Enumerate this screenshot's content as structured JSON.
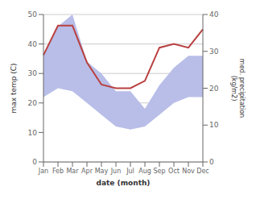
{
  "chart_data": {
    "type": "area",
    "xlabel": "date (month)",
    "ylabel": "max temp (C)",
    "y2label": "med. precipitation\n(kg/m2)",
    "categories": [
      "Jan",
      "Feb",
      "Mar",
      "Apr",
      "May",
      "Jun",
      "Jul",
      "Aug",
      "Sep",
      "Oct",
      "Nov",
      "Dec"
    ],
    "series": [
      {
        "type": "area",
        "color": "#b8bee8",
        "values": [
          36,
          46,
          50,
          34,
          30,
          24,
          24,
          18,
          26,
          32,
          36,
          36
        ]
      },
      {
        "type": "area",
        "color": "#ffffff",
        "values": [
          22,
          25,
          24,
          20,
          16,
          12,
          11,
          12,
          16,
          20,
          22,
          22
        ]
      },
      {
        "type": "line",
        "color": "#b94040",
        "axis": "y2",
        "values": [
          29,
          37,
          37,
          27,
          21,
          20,
          20,
          22,
          31,
          32,
          31,
          36
        ]
      }
    ],
    "ylim": [
      0,
      50
    ],
    "yticks": [
      0,
      10,
      20,
      30,
      40,
      50
    ],
    "y2lim": [
      0,
      40
    ],
    "y2ticks": [
      0,
      10,
      20,
      30,
      40
    ],
    "grid": true
  }
}
